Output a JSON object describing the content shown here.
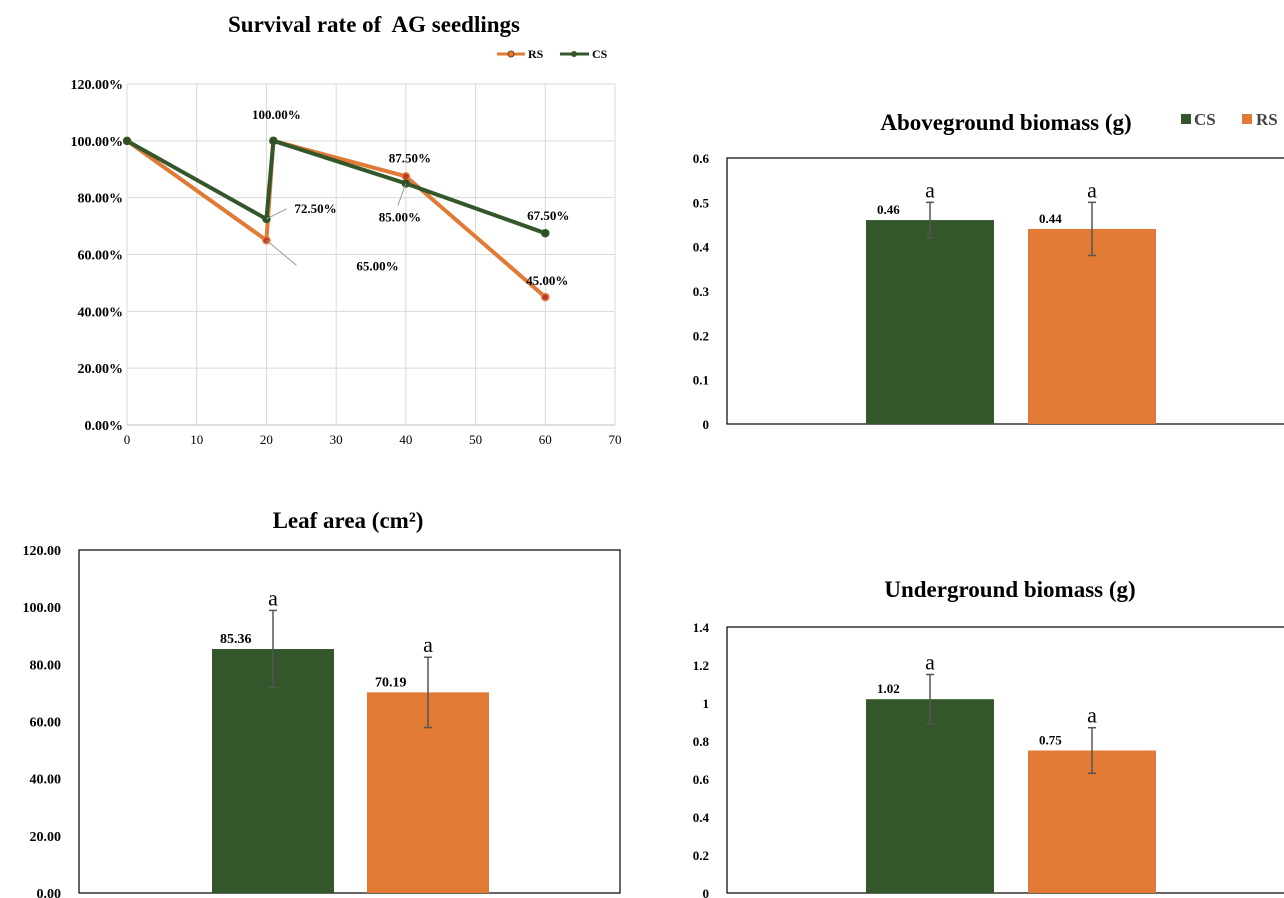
{
  "chart_data": [
    {
      "type": "line",
      "title": "Survival rate of  AG seedlings",
      "xlim": [
        0,
        70
      ],
      "x_ticks": [
        "0",
        "10",
        "20",
        "30",
        "40",
        "50",
        "60",
        "70"
      ],
      "ylim": [
        0,
        1.2
      ],
      "y_ticks": [
        "0.00%",
        "20.00%",
        "40.00%",
        "60.00%",
        "80.00%",
        "100.00%",
        "120.00%"
      ],
      "grid": true,
      "legend": "top-right",
      "series": [
        {
          "name": "RS",
          "color": "#E07A34",
          "x": [
            0,
            20,
            21,
            40,
            60
          ],
          "y": [
            1.0,
            0.65,
            1.0,
            0.875,
            0.45
          ],
          "labels": [
            "",
            "65.00%",
            "",
            "87.50%",
            "45.00%"
          ]
        },
        {
          "name": "CS",
          "color": "#33562A",
          "x": [
            0,
            20,
            21,
            40,
            60
          ],
          "y": [
            1.0,
            0.725,
            1.0,
            0.85,
            0.675
          ],
          "labels": [
            "",
            "72.50%",
            "100.00%",
            "85.00%",
            "67.50%"
          ]
        }
      ]
    },
    {
      "type": "bar",
      "title": "Aboveground biomass (g)",
      "ylim": [
        0,
        0.6
      ],
      "y_ticks": [
        "0",
        "0.1",
        "0.2",
        "0.3",
        "0.4",
        "0.5",
        "0.6"
      ],
      "legend": "top-right",
      "series": [
        {
          "name": "CS",
          "color": "#33562A",
          "value": 0.46,
          "error": 0.04,
          "label": "0.46",
          "sig": "a"
        },
        {
          "name": "RS",
          "color": "#E07A34",
          "value": 0.44,
          "error": 0.06,
          "label": "0.44",
          "sig": "a"
        }
      ]
    },
    {
      "type": "bar",
      "title": "Leaf area (cm²)",
      "ylim": [
        0,
        120
      ],
      "y_ticks": [
        "0.00",
        "20.00",
        "40.00",
        "60.00",
        "80.00",
        "100.00",
        "120.00"
      ],
      "series": [
        {
          "name": "CS",
          "color": "#33562A",
          "value": 85.36,
          "error": 13.5,
          "label": "85.36",
          "sig": "a"
        },
        {
          "name": "RS",
          "color": "#E07A34",
          "value": 70.19,
          "error": 12.3,
          "label": "70.19",
          "sig": "a"
        }
      ]
    },
    {
      "type": "bar",
      "title": "Underground biomass (g)",
      "ylim": [
        0,
        1.4
      ],
      "y_ticks": [
        "0",
        "0.2",
        "0.4",
        "0.6",
        "0.8",
        "1",
        "1.2",
        "1.4"
      ],
      "series": [
        {
          "name": "CS",
          "color": "#33562A",
          "value": 1.02,
          "error": 0.13,
          "label": "1.02",
          "sig": "a"
        },
        {
          "name": "RS",
          "color": "#E07A34",
          "value": 0.75,
          "error": 0.12,
          "label": "0.75",
          "sig": "a"
        }
      ]
    }
  ]
}
